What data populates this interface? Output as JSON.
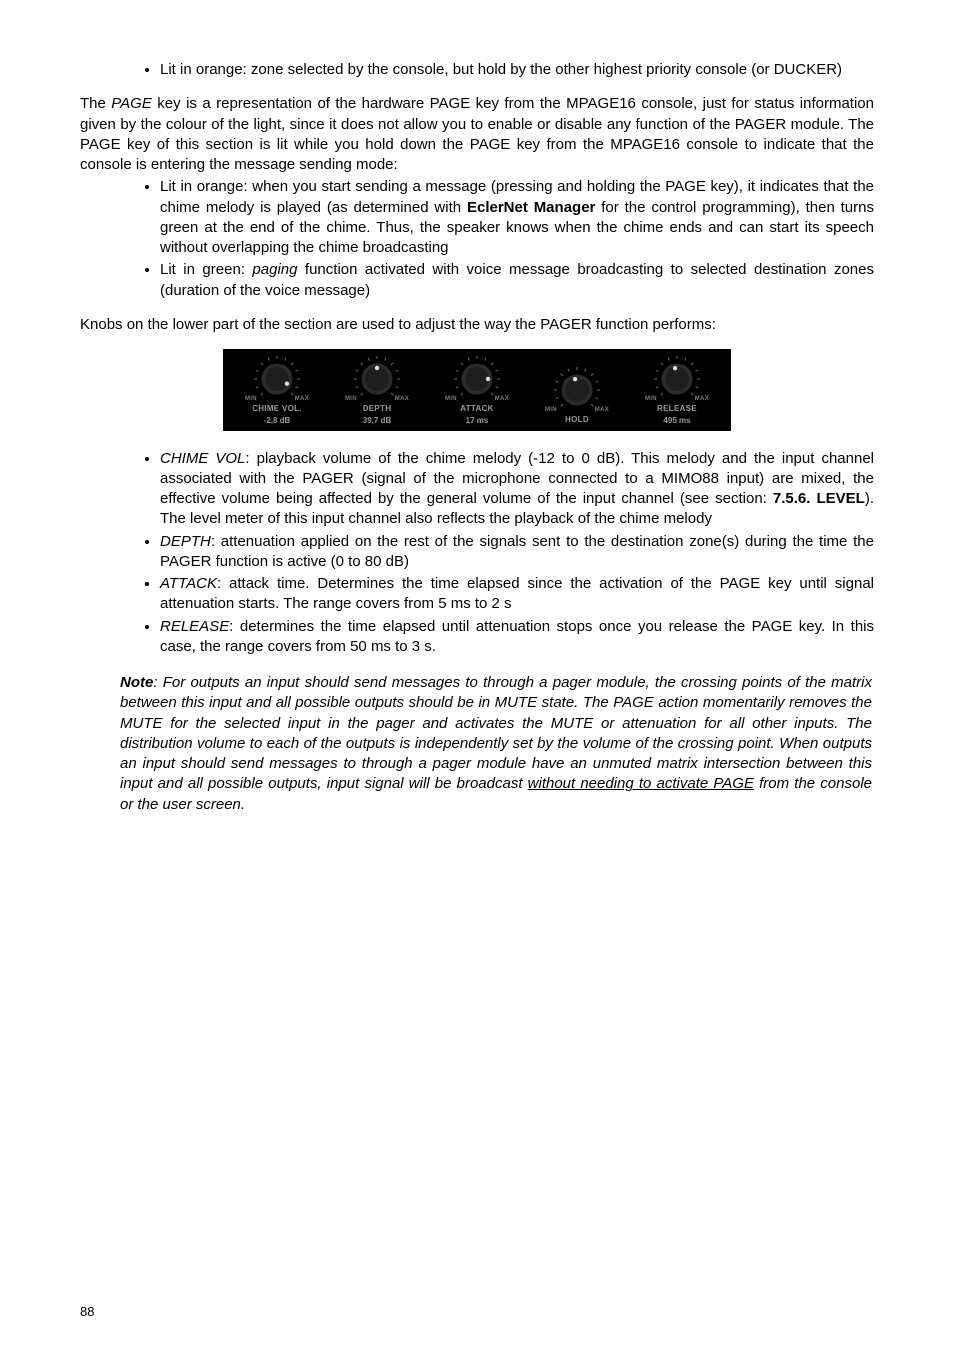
{
  "top_bullets": [
    "Lit in orange: zone selected by the console, but hold by the other highest priority console (or DUCKER)"
  ],
  "para1": "The <i>PAGE</i> key is a representation of the hardware PAGE key from the MPAGE16 console, just for status information given by the colour of the light, since it does not allow you to enable or disable any function of the PAGER module. The PAGE key of this section is lit while you hold down the PAGE key from the MPAGE16 console to indicate that the console is entering the message sending mode:",
  "mid_bullets": [
    "Lit in orange: when you start sending a message (pressing and holding the PAGE key), it indicates that the chime melody is played (as determined with <b>EclerNet Manager</b> for the control programming), then turns green at the end of the chime. Thus, the speaker knows when the chime ends and can start its speech without overlapping the chime broadcasting",
    "Lit in green: <i>paging</i> function activated with voice message broadcasting to selected destination zones (duration of the voice message)"
  ],
  "para2": "Knobs on the lower part of the section are used to adjust the way the PAGER function performs:",
  "knobs": [
    {
      "label": "CHIME VOL.",
      "value": "-2,8 dB",
      "angle": 115
    },
    {
      "label": "DEPTH",
      "value": "39,7 dB",
      "angle": 0
    },
    {
      "label": "ATTACK",
      "value": "17 ms",
      "angle": 90
    },
    {
      "label": "HOLD",
      "value": "",
      "angle": -10
    },
    {
      "label": "RELEASE",
      "value": "495 ms",
      "angle": -10
    }
  ],
  "min_label": "MIN",
  "max_label": "MAX",
  "bottom_bullets": [
    "<i>CHIME VOL</i>: playback volume of the chime melody (-12 to 0 dB). This melody and the input channel associated with the PAGER (signal of the microphone connected to a MIMO88 input) are mixed, the effective volume being affected by the general volume of the input channel (see section: <b>7.5.6. LEVEL</b>). The level meter of this input channel also reflects the playback of the chime melody",
    "<i>DEPTH</i>: attenuation applied on the rest of the signals sent to the destination zone(s) during the time the PAGER function is active (0 to 80 dB)",
    "<i>ATTACK</i>: attack time. Determines the time elapsed since the activation of the PAGE key until signal attenuation starts. The range covers from 5 ms to 2 s",
    "<i>RELEASE</i>: determines the time elapsed until attenuation stops once you release the PAGE key. In this case, the range covers from 50 ms to 3 s."
  ],
  "note_label": "Note",
  "note_body": ": For outputs an input should send messages to through a pager module, the crossing points of the matrix between this input and all possible outputs should be in MUTE state. The PAGE action momentarily removes the MUTE for the selected input in the pager and activates the MUTE or attenuation for all other inputs. The distribution volume to each of the outputs is independently set by the volume of the crossing point. When outputs an input should send messages to through a pager module have an unmuted matrix intersection between this input and all possible outputs, input signal will be broadcast <span class=\"underline\">without needing to activate PAGE</span> from the console or the user screen.",
  "page_number": "88",
  "knob_style": {
    "tick_color": "#6a6a6a",
    "body_fill": "#2b2b2b",
    "body_stroke": "#000",
    "indicator_fill": "#ddd"
  }
}
